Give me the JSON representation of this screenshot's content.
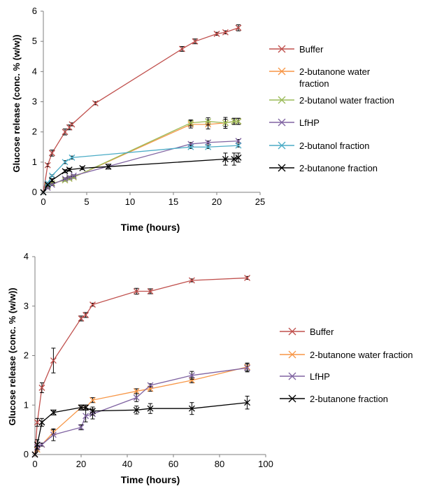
{
  "chart_data": [
    {
      "type": "line",
      "xlabel": "Time (hours)",
      "ylabel": "Glucose release (conc. % (w/w))",
      "xlim": [
        0,
        25
      ],
      "ylim": [
        0,
        6
      ],
      "xticks": [
        "0",
        "5",
        "10",
        "15",
        "20",
        "25"
      ],
      "yticks": [
        "0",
        "1",
        "2",
        "3",
        "4",
        "5",
        "6"
      ],
      "grid": false,
      "legend_position": "right",
      "marker": "x",
      "series": [
        {
          "name": "Buffer",
          "color": "#c0504d",
          "x": [
            0,
            0.5,
            1,
            2.5,
            3,
            3.3,
            6,
            16,
            17.5,
            20,
            21,
            22.5
          ],
          "y": [
            0,
            0.9,
            1.3,
            2.0,
            2.15,
            2.25,
            2.95,
            4.75,
            5.0,
            5.25,
            5.3,
            5.45
          ],
          "err": [
            0,
            0.05,
            0.1,
            0.1,
            0.08,
            0.05,
            0.05,
            0.08,
            0.08,
            0.05,
            0.05,
            0.1
          ]
        },
        {
          "name": "2-butanone water fraction",
          "color": "#f79646",
          "x": [
            0,
            0.5,
            1,
            2.5,
            3,
            3.5,
            17,
            19,
            21,
            22,
            22.5
          ],
          "y": [
            0,
            0.2,
            0.3,
            0.4,
            0.45,
            0.5,
            2.25,
            2.25,
            2.3,
            2.35,
            2.35
          ],
          "err": [
            0,
            0.03,
            0.03,
            0.03,
            0.03,
            0.03,
            0.12,
            0.15,
            0.18,
            0.1,
            0.1
          ]
        },
        {
          "name": "2-butanol water fraction",
          "color": "#9bbb59",
          "x": [
            0,
            0.5,
            1,
            2.5,
            3,
            3.5,
            17,
            19,
            21,
            22,
            22.5
          ],
          "y": [
            0,
            0.2,
            0.3,
            0.4,
            0.45,
            0.5,
            2.3,
            2.35,
            2.3,
            2.35,
            2.35
          ],
          "err": [
            0,
            0.03,
            0.03,
            0.03,
            0.03,
            0.03,
            0.1,
            0.12,
            0.12,
            0.1,
            0.1
          ]
        },
        {
          "name": "LfHP",
          "color": "#8064a2",
          "x": [
            0,
            0.5,
            1,
            2.5,
            3,
            3.5,
            17,
            19,
            22.5
          ],
          "y": [
            0,
            0.15,
            0.25,
            0.45,
            0.5,
            0.55,
            1.6,
            1.65,
            1.7
          ],
          "err": [
            0,
            0.03,
            0.03,
            0.03,
            0.03,
            0.03,
            0.05,
            0.05,
            0.05
          ]
        },
        {
          "name": "2-butanol fraction",
          "color": "#4bacc6",
          "x": [
            0,
            0.5,
            1,
            2.5,
            3.3,
            17,
            19,
            22.5
          ],
          "y": [
            0,
            0.3,
            0.55,
            1.0,
            1.15,
            1.5,
            1.5,
            1.55
          ],
          "err": [
            0,
            0.03,
            0.03,
            0.05,
            0.05,
            0.05,
            0.05,
            0.05
          ]
        },
        {
          "name": "2-butanone fraction",
          "color": "#000000",
          "x": [
            0,
            0.5,
            1,
            2.5,
            3,
            4.5,
            7.5,
            21,
            22,
            22.5
          ],
          "y": [
            0,
            0.25,
            0.4,
            0.7,
            0.75,
            0.8,
            0.85,
            1.1,
            1.1,
            1.15
          ],
          "err": [
            0,
            0.03,
            0.05,
            0.05,
            0.05,
            0.05,
            0.08,
            0.2,
            0.2,
            0.15
          ]
        }
      ]
    },
    {
      "type": "line",
      "xlabel": "Time (hours)",
      "ylabel": "Glucose release (conc. % (w/w))",
      "xlim": [
        0,
        100
      ],
      "ylim": [
        0,
        4
      ],
      "xticks": [
        "0",
        "20",
        "40",
        "60",
        "80",
        "100"
      ],
      "yticks": [
        "0",
        "1",
        "2",
        "3",
        "4"
      ],
      "grid": false,
      "legend_position": "right",
      "marker": "x",
      "series": [
        {
          "name": "Buffer",
          "color": "#c0504d",
          "x": [
            0,
            1,
            3,
            8,
            20,
            22,
            25,
            44,
            50,
            68,
            92
          ],
          "y": [
            0,
            0.65,
            1.35,
            1.9,
            2.75,
            2.82,
            3.03,
            3.3,
            3.3,
            3.52,
            3.57
          ],
          "err": [
            0,
            0.08,
            0.1,
            0.25,
            0.05,
            0.05,
            0.03,
            0.06,
            0.05,
            0.03,
            0.03
          ]
        },
        {
          "name": "2-butanone water fraction",
          "color": "#f79646",
          "x": [
            0,
            1,
            3,
            8,
            20,
            22,
            25,
            44,
            50,
            68,
            92
          ],
          "y": [
            0,
            0.1,
            0.2,
            0.45,
            0.95,
            0.95,
            1.1,
            1.28,
            1.33,
            1.5,
            1.77
          ],
          "err": [
            0,
            0.03,
            0.03,
            0.05,
            0.05,
            0.05,
            0.05,
            0.05,
            0.05,
            0.05,
            0.08
          ]
        },
        {
          "name": "LfHP",
          "color": "#8064a2",
          "x": [
            0,
            1,
            3,
            8,
            20,
            22,
            25,
            44,
            50,
            68,
            92
          ],
          "y": [
            0,
            0.15,
            0.2,
            0.4,
            0.55,
            0.78,
            0.82,
            1.15,
            1.4,
            1.6,
            1.75
          ],
          "err": [
            0,
            0.03,
            0.03,
            0.12,
            0.05,
            0.12,
            0.1,
            0.08,
            0.03,
            0.08,
            0.08
          ]
        },
        {
          "name": "2-butanone fraction",
          "color": "#000000",
          "x": [
            0,
            1,
            3,
            8,
            20,
            22,
            25,
            44,
            50,
            68,
            92
          ],
          "y": [
            0,
            0.2,
            0.65,
            0.85,
            0.95,
            0.95,
            0.88,
            0.9,
            0.93,
            0.93,
            1.05
          ],
          "err": [
            0,
            0.1,
            0.08,
            0.05,
            0.05,
            0.05,
            0.08,
            0.08,
            0.1,
            0.12,
            0.13
          ]
        }
      ]
    }
  ]
}
